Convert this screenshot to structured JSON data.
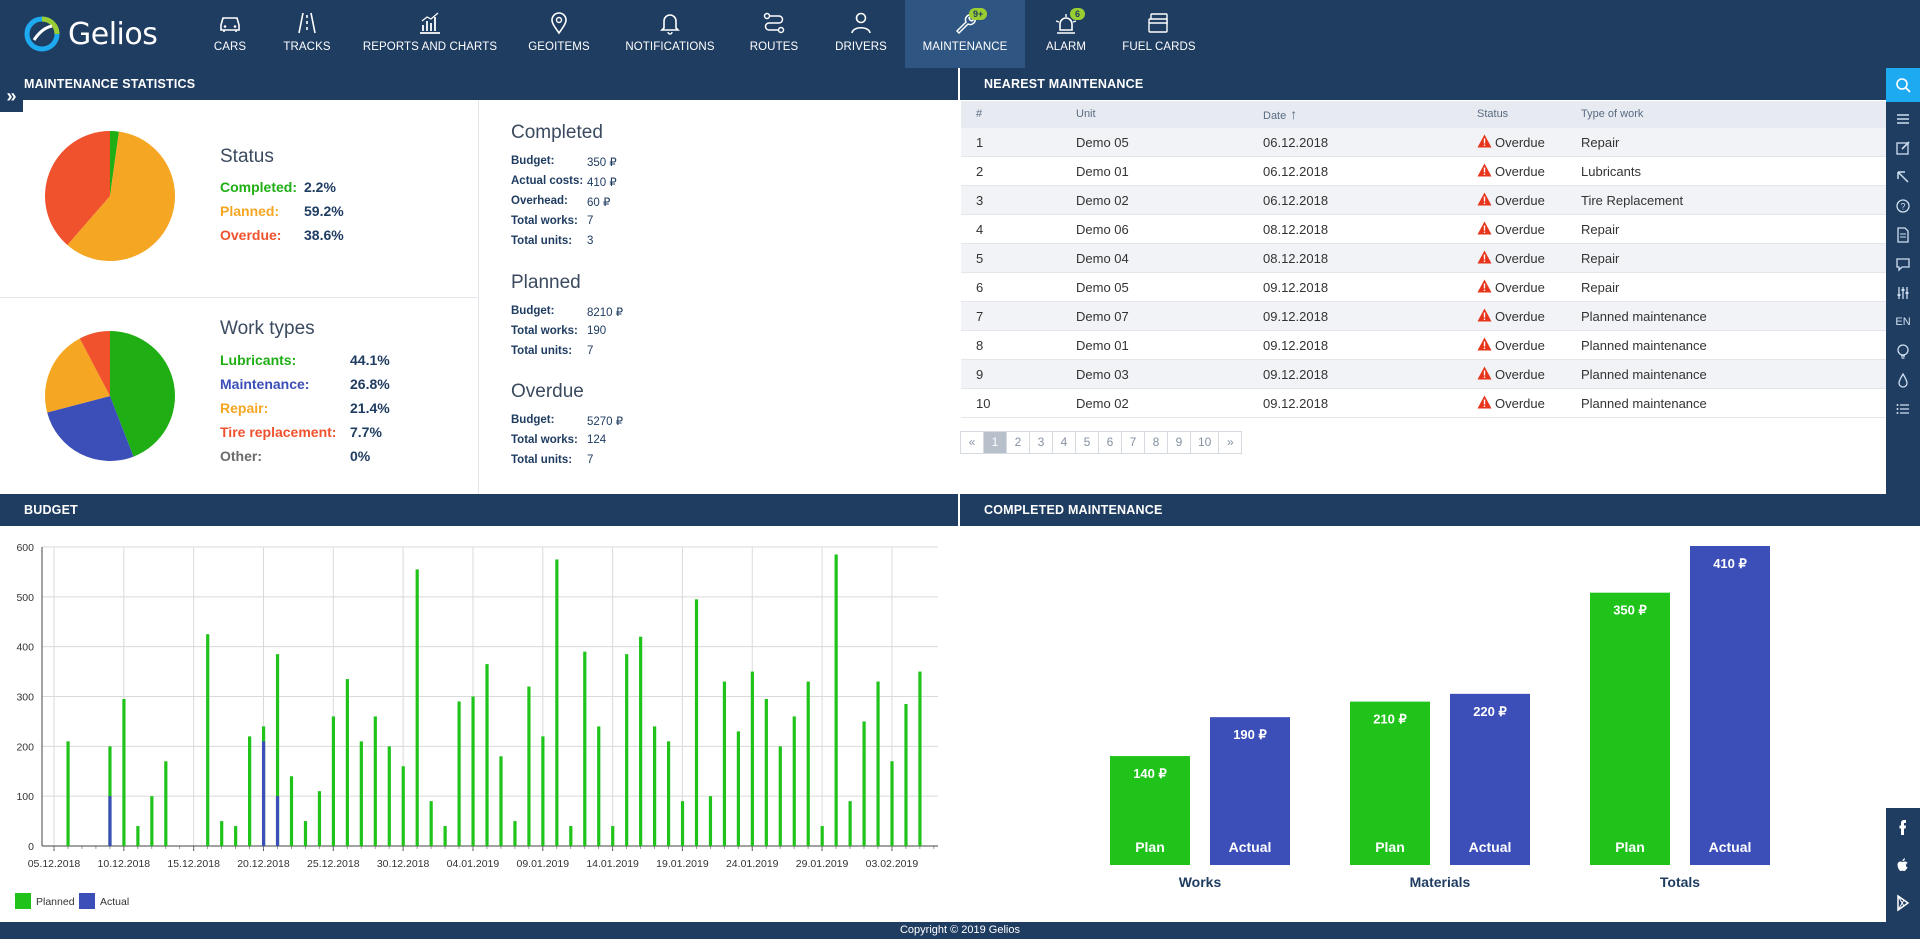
{
  "brand": {
    "name": "Gelios"
  },
  "nav": [
    {
      "id": "cars",
      "label": "CARS",
      "icon": "car-icon",
      "x": 230
    },
    {
      "id": "tracks",
      "label": "TRACKS",
      "icon": "road-icon",
      "x": 307
    },
    {
      "id": "reports",
      "label": "REPORTS AND CHARTS",
      "icon": "chart-icon",
      "x": 430
    },
    {
      "id": "geoitems",
      "label": "GEOITEMS",
      "icon": "map-pin-icon",
      "x": 559
    },
    {
      "id": "notifications",
      "label": "NOTIFICATIONS",
      "icon": "bell-icon",
      "x": 670
    },
    {
      "id": "routes",
      "label": "ROUTES",
      "icon": "route-icon",
      "x": 774
    },
    {
      "id": "drivers",
      "label": "DRIVERS",
      "icon": "user-icon",
      "x": 861
    },
    {
      "id": "maintenance",
      "label": "MAINTENANCE",
      "icon": "wrench-icon",
      "x": 965,
      "active": true,
      "badge": "9+"
    },
    {
      "id": "alarm",
      "label": "ALARM",
      "icon": "siren-icon",
      "x": 1066,
      "badge": "6"
    },
    {
      "id": "fuelcards",
      "label": "FUEL CARDS",
      "icon": "card-icon",
      "x": 1159
    }
  ],
  "sections": {
    "stats": "MAINTENANCE STATISTICS",
    "nearest": "NEAREST MAINTENANCE",
    "budget": "BUDGET",
    "completed": "COMPLETED MAINTENANCE"
  },
  "status": {
    "title": "Status",
    "items": [
      {
        "label": "Completed:",
        "value": "2.2%",
        "color": "#1fae14",
        "pct": 2.2
      },
      {
        "label": "Planned:",
        "value": "59.2%",
        "color": "#f5a623",
        "pct": 59.2
      },
      {
        "label": "Overdue:",
        "value": "38.6%",
        "color": "#f0522d",
        "pct": 38.6
      }
    ]
  },
  "worktypes": {
    "title": "Work types",
    "items": [
      {
        "label": "Lubricants:",
        "value": "44.1%",
        "color": "#1fae14",
        "pct": 44.1
      },
      {
        "label": "Maintenance:",
        "value": "26.8%",
        "color": "#3c4fb8",
        "pct": 26.8
      },
      {
        "label": "Repair:",
        "value": "21.4%",
        "color": "#f5a623",
        "pct": 21.4
      },
      {
        "label": "Tire replacement:",
        "value": "7.7%",
        "color": "#f0522d",
        "pct": 7.7
      },
      {
        "label": "Other:",
        "value": "0%",
        "color": "#6b6b6b",
        "pct": 0
      }
    ]
  },
  "summary": {
    "completed": {
      "title": "Completed",
      "rows": [
        {
          "label": "Budget:",
          "value": "350 ₽"
        },
        {
          "label": "Actual costs:",
          "value": "410 ₽"
        },
        {
          "label": "Overhead:",
          "value": "60 ₽"
        },
        {
          "label": "Total works:",
          "value": "7"
        },
        {
          "label": "Total units:",
          "value": "3"
        }
      ]
    },
    "planned": {
      "title": "Planned",
      "rows": [
        {
          "label": "Budget:",
          "value": "8210 ₽"
        },
        {
          "label": "Total works:",
          "value": "190"
        },
        {
          "label": "Total units:",
          "value": "7"
        }
      ]
    },
    "overdue": {
      "title": "Overdue",
      "rows": [
        {
          "label": "Budget:",
          "value": "5270 ₽"
        },
        {
          "label": "Total works:",
          "value": "124"
        },
        {
          "label": "Total units:",
          "value": "7"
        }
      ]
    }
  },
  "table": {
    "headers": [
      "#",
      "Unit",
      "Date",
      "Status",
      "Type of work"
    ],
    "rows": [
      [
        "1",
        "Demo 05",
        "06.12.2018",
        "Overdue",
        "Repair"
      ],
      [
        "2",
        "Demo 01",
        "06.12.2018",
        "Overdue",
        "Lubricants"
      ],
      [
        "3",
        "Demo 02",
        "06.12.2018",
        "Overdue",
        "Tire Replacement"
      ],
      [
        "4",
        "Demo 06",
        "08.12.2018",
        "Overdue",
        "Repair"
      ],
      [
        "5",
        "Demo 04",
        "08.12.2018",
        "Overdue",
        "Repair"
      ],
      [
        "6",
        "Demo 05",
        "09.12.2018",
        "Overdue",
        "Repair"
      ],
      [
        "7",
        "Demo 07",
        "09.12.2018",
        "Overdue",
        "Planned maintenance"
      ],
      [
        "8",
        "Demo 01",
        "09.12.2018",
        "Overdue",
        "Planned maintenance"
      ],
      [
        "9",
        "Demo 03",
        "09.12.2018",
        "Overdue",
        "Planned maintenance"
      ],
      [
        "10",
        "Demo 02",
        "09.12.2018",
        "Overdue",
        "Planned maintenance"
      ]
    ]
  },
  "pagination": [
    "«",
    "1",
    "2",
    "3",
    "4",
    "5",
    "6",
    "7",
    "8",
    "9",
    "10",
    "»"
  ],
  "rightbar": [
    "search-icon",
    "menu-icon",
    "edit-icon",
    "cursor-icon",
    "help-icon",
    "document-icon",
    "chat-icon",
    "sliders-icon",
    "EN",
    "lightbulb-icon",
    "drop-icon",
    "list-icon"
  ],
  "social": [
    "facebook-icon",
    "apple-icon",
    "play-store-icon"
  ],
  "footer": "Copyright © 2019 Gelios",
  "chart_data": [
    {
      "type": "bar",
      "id": "budget",
      "title": "",
      "xlabel": "",
      "ylabel": "",
      "ylim": [
        0,
        600
      ],
      "yticks": [
        0,
        100,
        200,
        300,
        400,
        500,
        600
      ],
      "x_tick_labels": [
        "05.12.2018",
        "10.12.2018",
        "15.12.2018",
        "20.12.2018",
        "25.12.2018",
        "30.12.2018",
        "04.01.2019",
        "09.01.2019",
        "14.01.2019",
        "19.01.2019",
        "24.01.2019",
        "29.01.2019",
        "03.02.2019"
      ],
      "x_start": "05.12.2018",
      "x_end": "03.02.2019",
      "grid": true,
      "legend": "bottom-left",
      "series": [
        {
          "name": "Planned",
          "color": "#1fc31a",
          "points": [
            [
              "06.12.2018",
              210
            ],
            [
              "09.12.2018",
              200
            ],
            [
              "10.12.2018",
              295
            ],
            [
              "11.12.2018",
              40
            ],
            [
              "12.12.2018",
              100
            ],
            [
              "13.12.2018",
              170
            ],
            [
              "16.12.2018",
              425
            ],
            [
              "17.12.2018",
              50
            ],
            [
              "18.12.2018",
              40
            ],
            [
              "19.12.2018",
              220
            ],
            [
              "20.12.2018",
              240
            ],
            [
              "21.12.2018",
              385
            ],
            [
              "22.12.2018",
              140
            ],
            [
              "23.12.2018",
              50
            ],
            [
              "24.12.2018",
              110
            ],
            [
              "25.12.2018",
              260
            ],
            [
              "26.12.2018",
              335
            ],
            [
              "27.12.2018",
              210
            ],
            [
              "28.12.2018",
              260
            ],
            [
              "29.12.2018",
              200
            ],
            [
              "30.12.2018",
              160
            ],
            [
              "31.12.2018",
              555
            ],
            [
              "01.01.2019",
              90
            ],
            [
              "02.01.2019",
              40
            ],
            [
              "03.01.2019",
              290
            ],
            [
              "04.01.2019",
              300
            ],
            [
              "05.01.2019",
              365
            ],
            [
              "06.01.2019",
              180
            ],
            [
              "07.01.2019",
              50
            ],
            [
              "08.01.2019",
              320
            ],
            [
              "09.01.2019",
              220
            ],
            [
              "10.01.2019",
              575
            ],
            [
              "11.01.2019",
              40
            ],
            [
              "12.01.2019",
              390
            ],
            [
              "13.01.2019",
              240
            ],
            [
              "14.01.2019",
              40
            ],
            [
              "15.01.2019",
              385
            ],
            [
              "16.01.2019",
              420
            ],
            [
              "17.01.2019",
              240
            ],
            [
              "18.01.2019",
              210
            ],
            [
              "19.01.2019",
              90
            ],
            [
              "20.01.2019",
              495
            ],
            [
              "21.01.2019",
              100
            ],
            [
              "22.01.2019",
              330
            ],
            [
              "23.01.2019",
              230
            ],
            [
              "24.01.2019",
              350
            ],
            [
              "25.01.2019",
              295
            ],
            [
              "26.01.2019",
              200
            ],
            [
              "27.01.2019",
              260
            ],
            [
              "28.01.2019",
              330
            ],
            [
              "29.01.2019",
              40
            ],
            [
              "30.01.2019",
              585
            ],
            [
              "31.01.2019",
              90
            ],
            [
              "01.02.2019",
              250
            ],
            [
              "02.02.2019",
              330
            ],
            [
              "03.02.2019",
              170
            ],
            [
              "04.02.2019",
              285
            ],
            [
              "05.02.2019",
              350
            ]
          ]
        },
        {
          "name": "Actual",
          "color": "#3c4fb8",
          "points": [
            [
              "09.12.2018",
              100
            ],
            [
              "20.12.2018",
              210
            ],
            [
              "21.12.2018",
              100
            ]
          ]
        }
      ]
    },
    {
      "type": "bar",
      "id": "completed-maintenance",
      "title": "",
      "categories": [
        "Works",
        "Materials",
        "Totals"
      ],
      "series": [
        {
          "name": "Plan",
          "color": "#1fc31a",
          "values": [
            140,
            210,
            350
          ],
          "labels": [
            "140 ₽",
            "210 ₽",
            "350 ₽"
          ]
        },
        {
          "name": "Actual",
          "color": "#3c4fb8",
          "values": [
            190,
            220,
            410
          ],
          "labels": [
            "190 ₽",
            "220 ₽",
            "410 ₽"
          ]
        }
      ],
      "ylim": [
        0,
        410
      ]
    }
  ]
}
